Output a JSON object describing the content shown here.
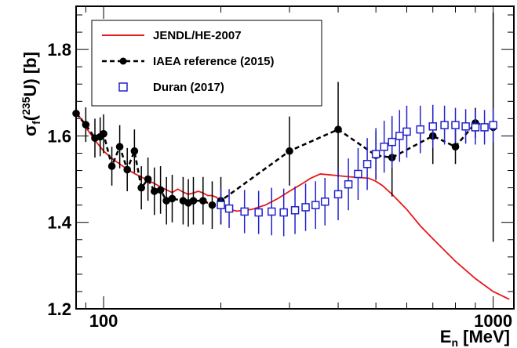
{
  "chart_data": {
    "type": "line",
    "title": "",
    "xlabel": {
      "main": "E",
      "sub": "n",
      "rest": " [MeV]"
    },
    "ylabel": {
      "sigma": "σ",
      "sub": "f",
      "open": "(",
      "sup": "235",
      "rest": "U) [b]"
    },
    "x_scale": "log",
    "xlim": [
      85,
      1130
    ],
    "ylim": [
      1.2,
      1.9
    ],
    "x_tick_labels": [
      {
        "value": 100,
        "label": "100"
      },
      {
        "value": 1000,
        "label": "1000"
      }
    ],
    "y_tick_labels": [
      {
        "value": 1.2,
        "label": "1.2"
      },
      {
        "value": 1.4,
        "label": "1.4"
      },
      {
        "value": 1.6,
        "label": "1.6"
      },
      {
        "value": 1.8,
        "label": "1.8"
      }
    ],
    "grid": false,
    "legend_position": "top-left",
    "series": [
      {
        "name": "JENDL/HE-2007",
        "style": "line",
        "color": "#e8191c",
        "x": [
          85,
          90,
          95,
          100,
          105,
          110,
          115,
          120,
          125,
          130,
          135,
          140,
          145,
          150,
          155,
          160,
          165,
          170,
          175,
          180,
          185,
          190,
          195,
          200,
          210,
          220,
          240,
          260,
          280,
          300,
          320,
          340,
          360,
          380,
          400,
          420,
          450,
          480,
          500,
          520,
          550,
          600,
          650,
          700,
          800,
          900,
          1000,
          1100
        ],
        "y": [
          1.658,
          1.62,
          1.59,
          1.565,
          1.548,
          1.535,
          1.523,
          1.513,
          1.505,
          1.497,
          1.49,
          1.482,
          1.475,
          1.469,
          1.477,
          1.47,
          1.465,
          1.468,
          1.472,
          1.468,
          1.462,
          1.462,
          1.458,
          1.448,
          1.43,
          1.426,
          1.43,
          1.44,
          1.455,
          1.472,
          1.487,
          1.502,
          1.512,
          1.51,
          1.508,
          1.506,
          1.504,
          1.502,
          1.495,
          1.485,
          1.465,
          1.43,
          1.392,
          1.362,
          1.31,
          1.27,
          1.24,
          1.222
        ]
      },
      {
        "name": "IAEA reference (2015)",
        "style": "line-marker",
        "color": "#000000",
        "x": [
          85,
          90,
          95,
          98,
          100,
          105,
          110,
          115,
          120,
          125,
          130,
          135,
          140,
          145,
          150,
          160,
          165,
          170,
          180,
          190,
          200,
          300,
          400,
          500,
          550,
          700,
          800,
          900,
          1000
        ],
        "y": [
          1.652,
          1.626,
          1.595,
          1.598,
          1.605,
          1.53,
          1.575,
          1.522,
          1.565,
          1.48,
          1.5,
          1.472,
          1.475,
          1.45,
          1.455,
          1.45,
          1.445,
          1.45,
          1.45,
          1.44,
          1.45,
          1.565,
          1.615,
          1.555,
          1.55,
          1.6,
          1.575,
          1.63,
          1.62
        ],
        "err": [
          0.04,
          0.04,
          0.045,
          0.045,
          0.045,
          0.045,
          0.05,
          0.05,
          0.05,
          0.05,
          0.05,
          0.055,
          0.055,
          0.055,
          0.055,
          0.055,
          0.055,
          0.055,
          0.055,
          0.055,
          0.055,
          0.08,
          0.11,
          0.055,
          0.09,
          0.065,
          0.04,
          0.035,
          0.265
        ]
      },
      {
        "name": "Duran (2017)",
        "style": "marker-open-square",
        "color": "#2222cc",
        "x": [
          200,
          210,
          230,
          250,
          270,
          290,
          310,
          330,
          350,
          370,
          400,
          425,
          450,
          475,
          500,
          525,
          550,
          575,
          600,
          650,
          700,
          750,
          800,
          850,
          900,
          950,
          1000
        ],
        "y": [
          1.44,
          1.432,
          1.425,
          1.423,
          1.425,
          1.423,
          1.428,
          1.435,
          1.44,
          1.448,
          1.465,
          1.488,
          1.512,
          1.535,
          1.558,
          1.575,
          1.586,
          1.6,
          1.61,
          1.615,
          1.622,
          1.625,
          1.625,
          1.622,
          1.62,
          1.62,
          1.625
        ],
        "err": [
          0.04,
          0.045,
          0.05,
          0.05,
          0.055,
          0.055,
          0.055,
          0.055,
          0.055,
          0.055,
          0.06,
          0.06,
          0.06,
          0.06,
          0.06,
          0.06,
          0.06,
          0.06,
          0.06,
          0.055,
          0.05,
          0.045,
          0.04,
          0.04,
          0.04,
          0.04,
          0.04
        ]
      }
    ]
  }
}
